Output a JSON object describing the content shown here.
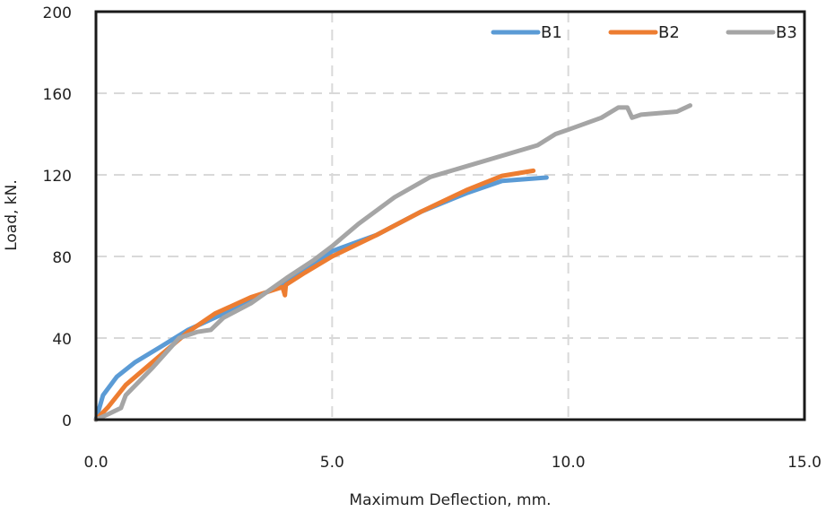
{
  "chart_data": {
    "type": "line",
    "title": "",
    "xlabel": "Maximum Deflection, mm.",
    "ylabel": "Load, kN.",
    "xlim": [
      0,
      15
    ],
    "ylim": [
      0,
      200
    ],
    "xticks": [
      0,
      5,
      10,
      15
    ],
    "xtick_labels": [
      "0.0",
      "5.0",
      "10.0",
      "15.0"
    ],
    "yticks": [
      0,
      40,
      80,
      120,
      160,
      200
    ],
    "ytick_labels": [
      "0",
      "40",
      "80",
      "120",
      "160",
      "200"
    ],
    "grid": "dashed",
    "legend": "top-right",
    "series": [
      {
        "name": "B1",
        "color": "#5b9bd5",
        "x": [
          0,
          0.15,
          0.44,
          0.82,
          1.39,
          1.95,
          2.9,
          3.66,
          4.4,
          5.0,
          5.94,
          6.89,
          7.84,
          8.6,
          9.54
        ],
        "y": [
          0,
          12,
          21,
          28,
          36,
          44,
          54,
          63,
          72.5,
          82.6,
          90.5,
          102,
          111,
          117,
          118.7
        ]
      },
      {
        "name": "B2",
        "color": "#ed7d31",
        "x": [
          0,
          0.25,
          0.63,
          1.39,
          1.95,
          2.52,
          3.28,
          3.95,
          4.0,
          4.02,
          4.05,
          4.42,
          5.0,
          5.94,
          6.89,
          7.84,
          8.6,
          9.26
        ],
        "y": [
          0,
          6,
          17,
          32,
          43,
          52,
          60,
          65,
          61,
          66,
          66.5,
          72,
          80,
          90.5,
          102,
          112.5,
          119.5,
          122
        ]
      },
      {
        "name": "B3",
        "color": "#a5a5a5",
        "x": [
          0,
          0.25,
          0.53,
          0.63,
          1.2,
          1.76,
          2.14,
          2.43,
          2.7,
          3.28,
          4.04,
          4.6,
          5.0,
          5.56,
          6.32,
          7.08,
          9.35,
          9.73,
          10.1,
          10.7,
          11.06,
          11.25,
          11.35,
          11.54,
          12.3,
          12.58
        ],
        "y": [
          0,
          2.6,
          5.7,
          12,
          25.5,
          40,
          43,
          44,
          50,
          57,
          69.5,
          78,
          85,
          96,
          109,
          119,
          134.5,
          140,
          143,
          148,
          153,
          153,
          148,
          149.5,
          151,
          154
        ]
      }
    ]
  }
}
